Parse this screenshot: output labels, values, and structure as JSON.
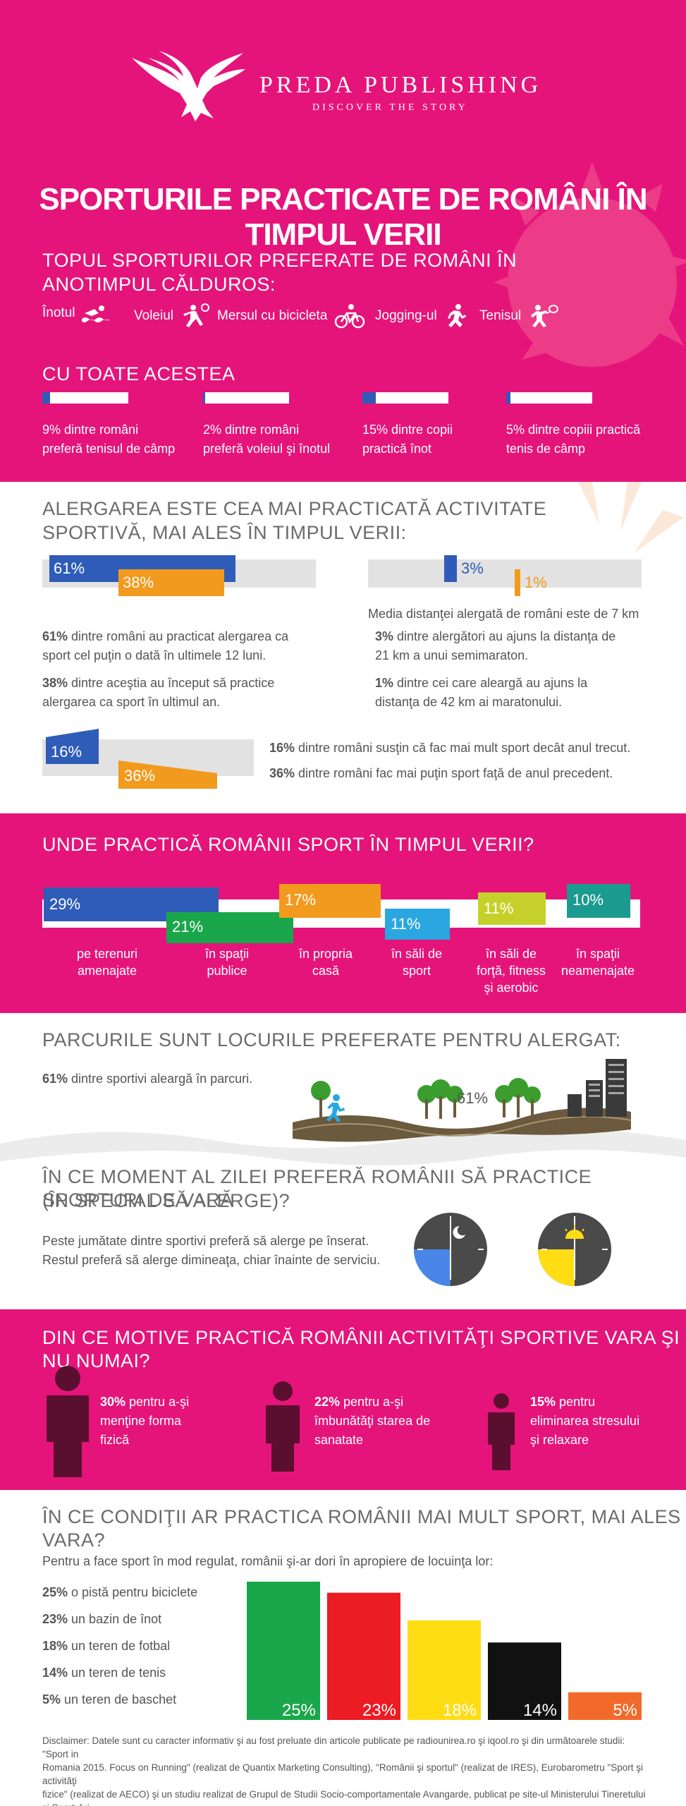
{
  "brand": {
    "name": "PREDA PUBLISHING",
    "tagline": "DISCOVER THE STORY"
  },
  "title": "SPORTURILE PRACTICATE DE ROMÂNI ÎN TIMPUL VERII",
  "colors": {
    "pink": "#e5147a",
    "blue": "#2e5cb8",
    "orange": "#f29a1d",
    "green": "#1aa64a",
    "red": "#ec1c24",
    "yellow": "#ffdd15",
    "black": "#111111",
    "darkorange": "#f26a2a",
    "teal": "#1b9a8f",
    "lime": "#c5d12a",
    "cyan": "#2aa7e0",
    "maroon": "#5a0f2e"
  },
  "top_sports": {
    "heading_line1": "TOPUL SPORTURILOR PREFERATE DE ROMÂNI ÎN",
    "heading_line2": "ANOTIMPUL CĂLDUROS:",
    "items": [
      {
        "label": "Înotul",
        "icon": "swimmer-icon"
      },
      {
        "label": "Voleiul",
        "icon": "volleyball-player-icon"
      },
      {
        "label": "Mersul cu bicicleta",
        "icon": "bicycle-icon"
      },
      {
        "label": "Jogging-ul",
        "icon": "runner-icon"
      },
      {
        "label": "Tenisul",
        "icon": "tennis-player-icon"
      }
    ]
  },
  "however": {
    "heading": "CU TOATE ACESTEA",
    "items": [
      {
        "value": 9,
        "line1": "9% dintre români",
        "line2": "preferă tenisul de câmp"
      },
      {
        "value": 2,
        "line1": "2% dintre români",
        "line2": "preferă voleiul şi înotul"
      },
      {
        "value": 15,
        "line1": "15% dintre copii",
        "line2": "practică înot"
      },
      {
        "value": 5,
        "line1": "5% dintre copiii practică",
        "line2": "tenis de câmp"
      }
    ]
  },
  "running": {
    "heading_line1": "ALERGAREA ESTE CEA MAI PRACTICATĂ ACTIVITATE",
    "heading_line2": "SPORTIVĂ, MAI ALES ÎN TIMPUL VERII:",
    "bar_61": "61%",
    "bar_38": "38%",
    "text1_bold": "61%",
    "text1_l1": " dintre români au practicat alergarea ca",
    "text1_l2": "sport cel puţin o dată în ultimele 12 luni.",
    "text2_bold": "38%",
    "text2_l1": " dintre aceştia au început să practice",
    "text2_l2": "alergarea ca sport în ultimul an.",
    "bar_3": "3%",
    "bar_1": "1%",
    "media": "Media distanţei alergată de români este de 7 km",
    "text3_bold": "3%",
    "text3_l1": " dintre alergători au ajuns la distanţa de",
    "text3_l2": "21 km a unui semimaraton.",
    "text4_bold": "1%",
    "text4_l1": " dintre cei care aleargă au ajuns la",
    "text4_l2": "distanţa de 42 km ai maratonului.",
    "bar_16": "16%",
    "bar_36": "36%",
    "text5_bold": "16%",
    "text5": " dintre români susţin că fac mai mult sport decât anul trecut.",
    "text6_bold": "36%",
    "text6": " dintre români fac mai puţin sport faţă de anul precedent."
  },
  "places": {
    "heading": "UNDE PRACTICĂ ROMÂNII SPORT ÎN TIMPUL VERII?",
    "items": [
      {
        "value": 29,
        "label": "29%",
        "line1": "pe terenuri",
        "line2": "amenajate",
        "line3": ""
      },
      {
        "value": 21,
        "label": "21%",
        "line1": "în spaţii",
        "line2": "publice",
        "line3": ""
      },
      {
        "value": 17,
        "label": "17%",
        "line1": "în propria",
        "line2": "casă",
        "line3": ""
      },
      {
        "value": 11,
        "label": "11%",
        "line1": "în săli de",
        "line2": "sport",
        "line3": ""
      },
      {
        "value": 11,
        "label": "11%",
        "line1": "în săli de",
        "line2": "forţă, fitness",
        "line3": "şi aerobic"
      },
      {
        "value": 10,
        "label": "10%",
        "line1": "în spaţii",
        "line2": "neamenajate",
        "line3": ""
      }
    ]
  },
  "parks": {
    "heading": "PARCURILE SUNT LOCURILE PREFERATE PENTRU ALERGAT:",
    "text_bold": "61%",
    "text": " dintre sportivi aleargă în parcuri.",
    "road_label": "61%"
  },
  "time": {
    "heading_line1": "ÎN CE MOMENT AL ZILEI PREFERĂ ROMÂNII SĂ PRACTICE SPORTURI DE VARĂ",
    "heading_line2": "(ÎN SPECIAL SĂ ALERGE)?",
    "text_l1": "Peste jumătate dintre sportivi preferă să alerge pe înserat.",
    "text_l2": "Restul preferă să alerge dimineaţa, chiar înainte de serviciu."
  },
  "reasons": {
    "heading": "DIN CE MOTIVE PRACTICĂ ROMÂNII ACTIVITĂŢI SPORTIVE VARA ŞI NU NUMAI?",
    "items": [
      {
        "value": 30,
        "bold": "30%",
        "l1": " pentru a-şi",
        "l2": "menţine forma",
        "l3": "fizică"
      },
      {
        "value": 22,
        "bold": "22%",
        "l1": " pentru a-şi",
        "l2": "îmbunătăţi starea de",
        "l3": "sanatate"
      },
      {
        "value": 15,
        "bold": "15%",
        "l1": " pentru",
        "l2": "eliminarea stresului",
        "l3": "şi  relaxare"
      }
    ]
  },
  "conditions": {
    "heading": "ÎN CE CONDIŢII AR PRACTICA ROMÂNII MAI MULT SPORT, MAI ALES VARA?",
    "intro": "Pentru a face sport în mod regulat, românii şi-ar dori în apropiere de locuinţa lor:",
    "items": [
      {
        "bold": "25%",
        "text": " o pistă pentru biciclete"
      },
      {
        "bold": "23%",
        "text": " un bazin de înot"
      },
      {
        "bold": "18%",
        "text": " un teren de fotbal"
      },
      {
        "bold": "14%",
        "text": " un teren de tenis"
      },
      {
        "bold": "5%",
        "text": " un teren de baschet"
      }
    ]
  },
  "chart_data": {
    "type": "bar",
    "categories": [
      "o pistă pentru biciclete",
      "un bazin de înot",
      "un teren de fotbal",
      "un teren de tenis",
      "un teren de baschet"
    ],
    "values": [
      25,
      23,
      18,
      14,
      5
    ],
    "labels": [
      "25%",
      "23%",
      "18%",
      "14%",
      "5%"
    ],
    "colors": [
      "#1aa64a",
      "#ec1c24",
      "#ffdd15",
      "#111111",
      "#f26a2a"
    ],
    "title": "",
    "xlabel": "",
    "ylabel": "",
    "ylim": [
      0,
      25
    ]
  },
  "disclaimer": {
    "l1": "Disclaimer: Datele sunt cu caracter informativ şi au fost preluate din articole publicate pe radiounirea.ro şi iqool.ro şi din următoarele studii: \"Sport in",
    "l2": "Romania 2015. Focus on Running\" (realizat de Quantix Marketing Consulting), \"Românii şi sportul\" (realizat de IRES), Eurobarometru \"Sport şi activităţi",
    "l3": "fizice\" (realizat de AECO) şi un studiu realizat de Grupul de Studii Socio-comportamentale Avangarde, publicat pe site-ul Ministerului Tineretului şi Sportului."
  }
}
